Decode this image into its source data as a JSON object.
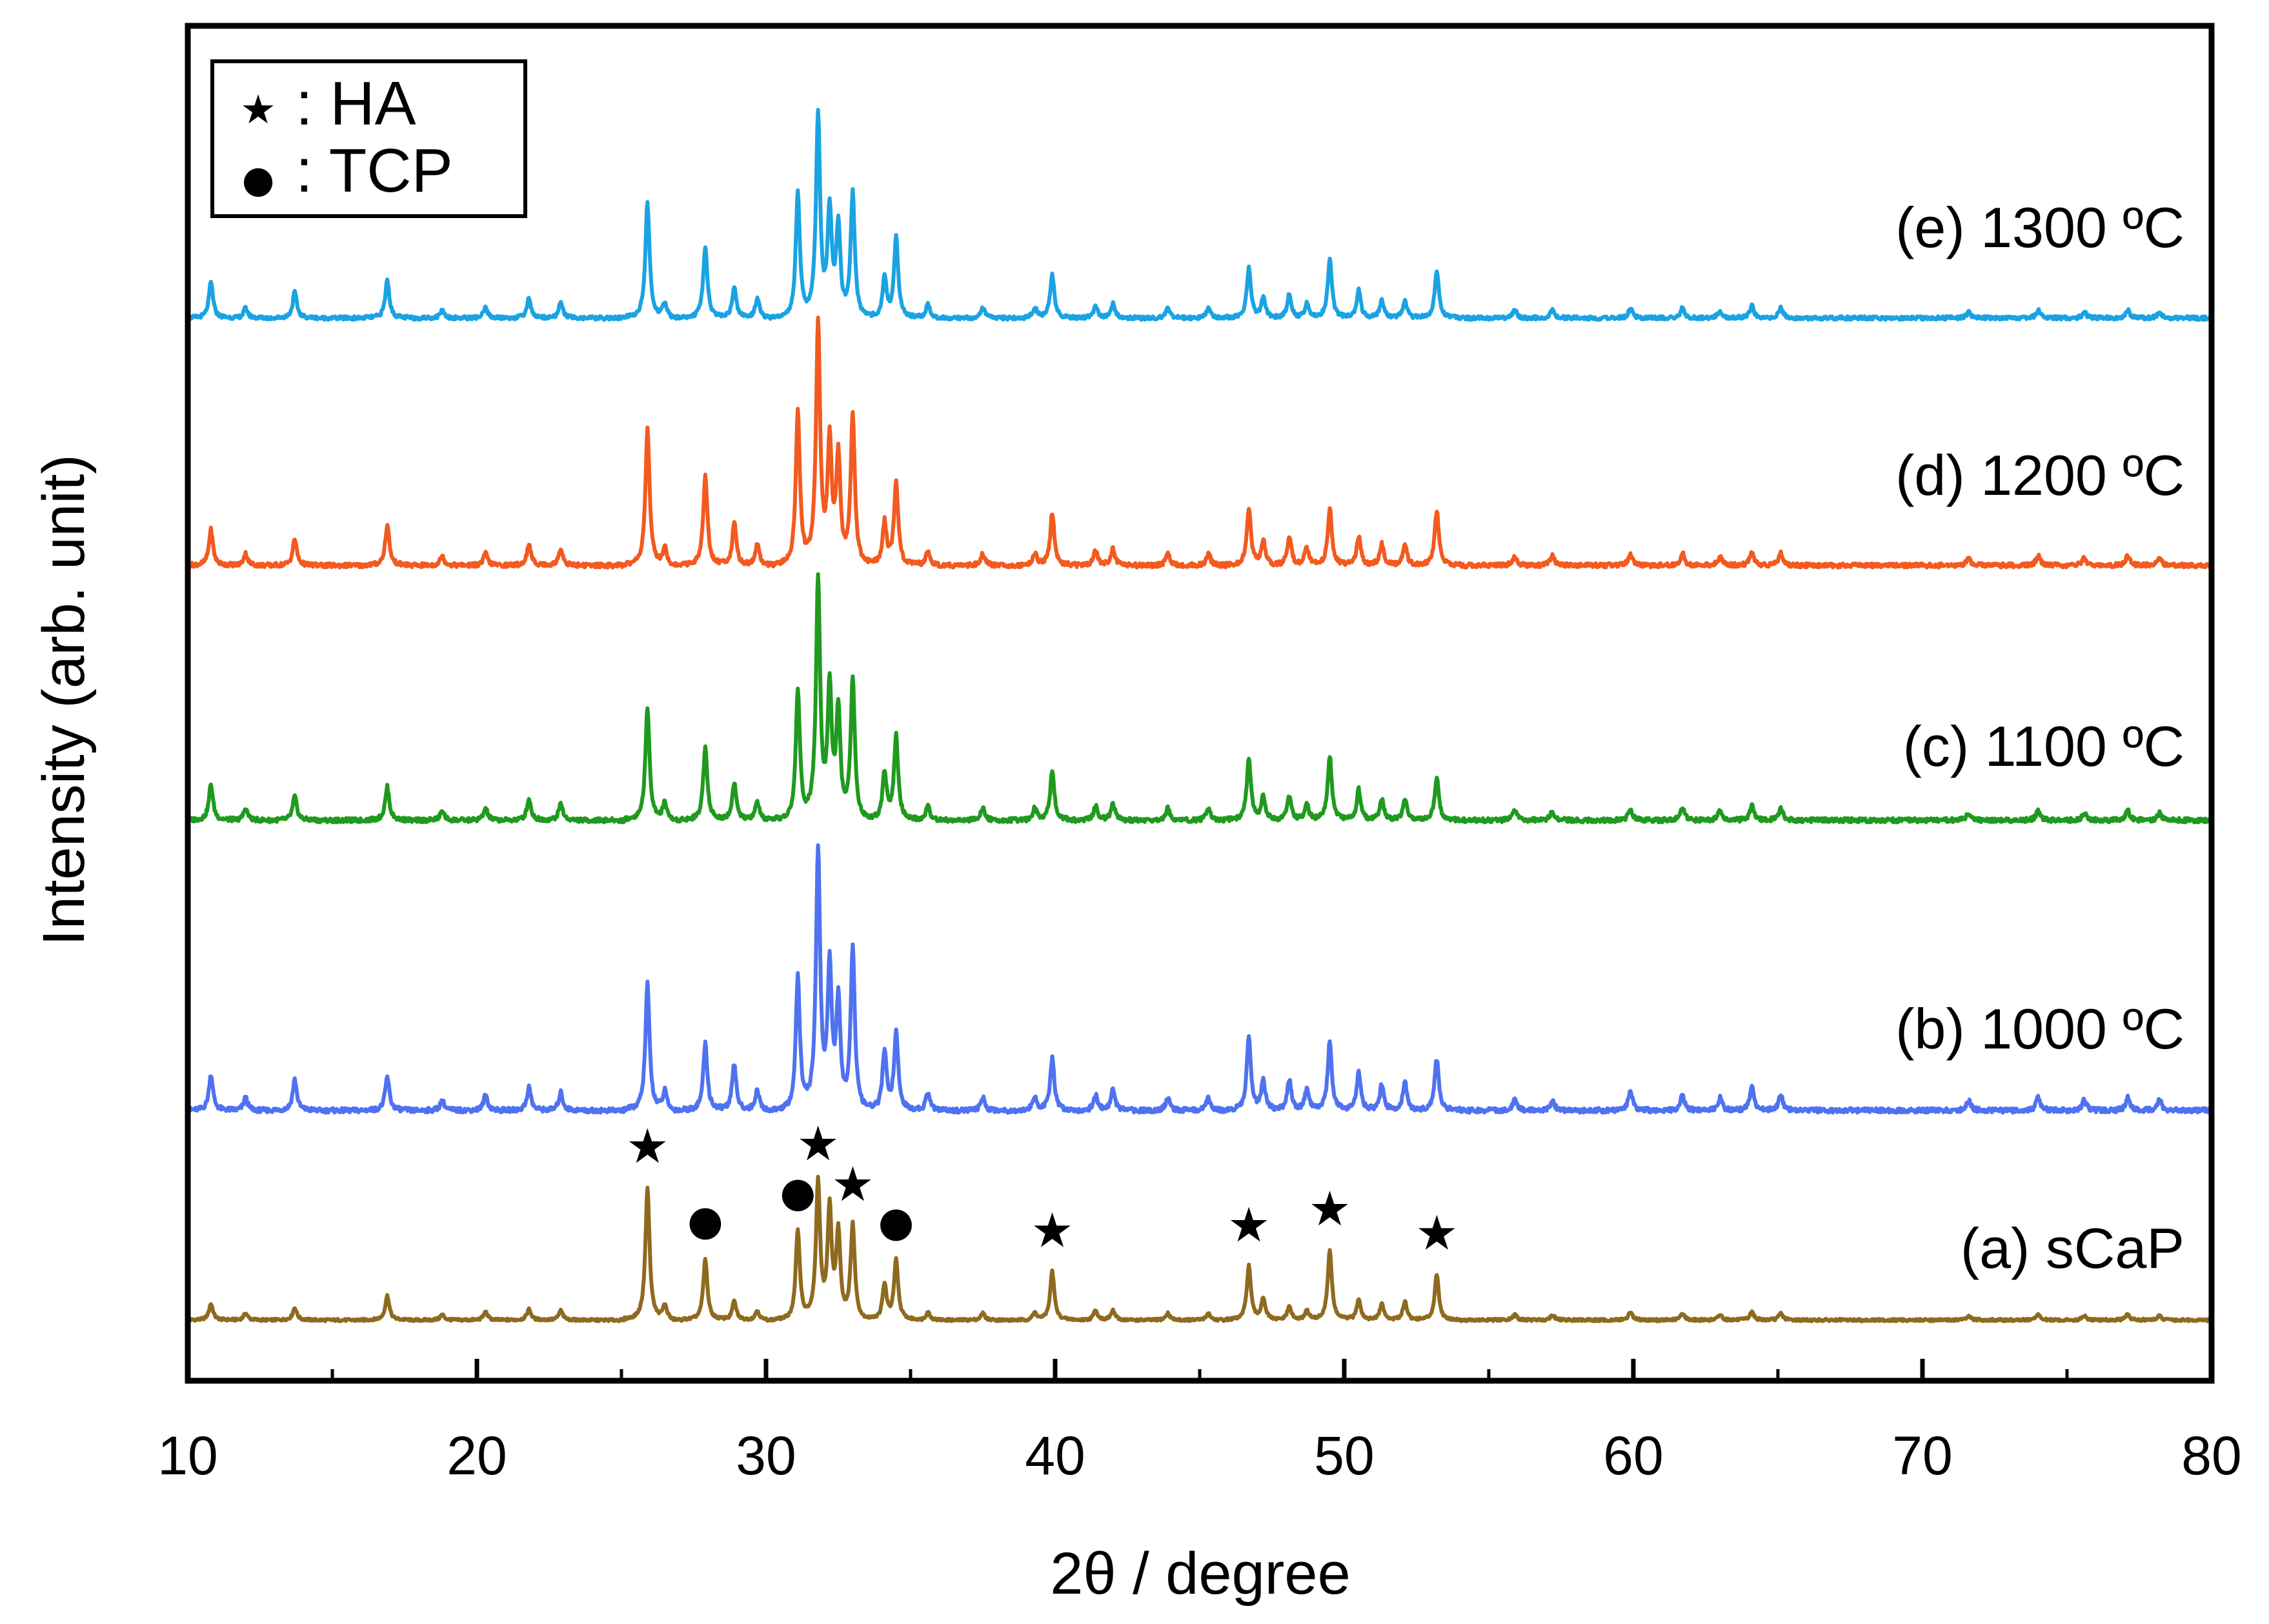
{
  "chart_data": {
    "type": "line",
    "title": "",
    "xlabel": "2θ / degree",
    "ylabel": "Intensity (arb. unit)",
    "xlim": [
      10,
      80
    ],
    "xticks": [
      10,
      20,
      30,
      40,
      50,
      60,
      70,
      80
    ],
    "xtick_labels": [
      "10",
      "20",
      "30",
      "40",
      "50",
      "60",
      "70",
      "80"
    ],
    "y_ticks_shown": false,
    "legend": {
      "position": "top-left",
      "entries": [
        {
          "symbol": "★",
          "label": ": HA"
        },
        {
          "symbol": "●",
          "label": ": TCP"
        }
      ]
    },
    "peaks_2theta": [
      10.8,
      12.0,
      13.7,
      16.9,
      18.8,
      20.3,
      21.8,
      22.9,
      25.9,
      26.5,
      27.9,
      28.9,
      29.7,
      31.1,
      31.8,
      32.2,
      32.5,
      33.0,
      34.1,
      34.5,
      35.6,
      37.5,
      39.3,
      39.9,
      41.4,
      42.0,
      43.9,
      45.3,
      46.7,
      47.2,
      48.1,
      48.7,
      49.5,
      50.5,
      51.3,
      52.1,
      53.2,
      55.9,
      57.2,
      59.9,
      61.7,
      63.0,
      64.1,
      65.1,
      71.6,
      74.0,
      75.6,
      77.1,
      78.2
    ],
    "series": [
      {
        "name": "(a) sCaP",
        "label": "(a) sCaP",
        "color": "#8f6a1e",
        "offset": 0,
        "relative_intensities": [
          0.12,
          0.05,
          0.09,
          0.18,
          0.04,
          0.06,
          0.08,
          0.07,
          0.98,
          0.1,
          0.45,
          0.14,
          0.07,
          0.66,
          1.0,
          0.8,
          0.62,
          0.7,
          0.26,
          0.44,
          0.06,
          0.05,
          0.05,
          0.36,
          0.07,
          0.07,
          0.05,
          0.05,
          0.4,
          0.16,
          0.1,
          0.07,
          0.52,
          0.16,
          0.12,
          0.14,
          0.34,
          0.04,
          0.04,
          0.06,
          0.05,
          0.04,
          0.06,
          0.05,
          0.03,
          0.04,
          0.03,
          0.04,
          0.03
        ]
      },
      {
        "name": "(b) 1000 ºC",
        "label": "(b) 1000 ºC",
        "color": "#4e72f0",
        "offset": 1,
        "relative_intensities": [
          0.14,
          0.05,
          0.12,
          0.13,
          0.04,
          0.06,
          0.09,
          0.07,
          0.49,
          0.07,
          0.26,
          0.18,
          0.08,
          0.51,
          1.0,
          0.54,
          0.4,
          0.63,
          0.23,
          0.3,
          0.07,
          0.05,
          0.05,
          0.2,
          0.06,
          0.08,
          0.05,
          0.05,
          0.29,
          0.11,
          0.12,
          0.08,
          0.27,
          0.15,
          0.1,
          0.11,
          0.2,
          0.04,
          0.04,
          0.08,
          0.06,
          0.05,
          0.09,
          0.06,
          0.04,
          0.05,
          0.04,
          0.05,
          0.04
        ]
      },
      {
        "name": "(c) 1100 ºC",
        "label": "(c) 1100 ºC",
        "color": "#1f9a1f",
        "offset": 2,
        "relative_intensities": [
          0.15,
          0.05,
          0.1,
          0.14,
          0.04,
          0.05,
          0.09,
          0.07,
          0.47,
          0.07,
          0.31,
          0.16,
          0.08,
          0.54,
          1.0,
          0.54,
          0.44,
          0.59,
          0.2,
          0.35,
          0.06,
          0.05,
          0.05,
          0.21,
          0.06,
          0.07,
          0.05,
          0.05,
          0.26,
          0.1,
          0.1,
          0.07,
          0.27,
          0.13,
          0.09,
          0.09,
          0.18,
          0.04,
          0.04,
          0.05,
          0.05,
          0.04,
          0.06,
          0.05,
          0.03,
          0.04,
          0.03,
          0.04,
          0.03
        ]
      },
      {
        "name": "(d) 1200 ºC",
        "label": "(d) 1200 ºC",
        "color": "#f25a1f",
        "offset": 3,
        "relative_intensities": [
          0.15,
          0.05,
          0.11,
          0.17,
          0.04,
          0.05,
          0.09,
          0.07,
          0.57,
          0.07,
          0.38,
          0.18,
          0.09,
          0.64,
          1.0,
          0.5,
          0.44,
          0.63,
          0.18,
          0.35,
          0.06,
          0.05,
          0.05,
          0.22,
          0.06,
          0.07,
          0.05,
          0.05,
          0.24,
          0.1,
          0.12,
          0.07,
          0.24,
          0.12,
          0.09,
          0.09,
          0.23,
          0.04,
          0.04,
          0.05,
          0.05,
          0.04,
          0.06,
          0.05,
          0.03,
          0.04,
          0.03,
          0.04,
          0.03
        ]
      },
      {
        "name": "(e) 1300 ºC",
        "label": "(e) 1300 ºC",
        "color": "#1aa3e3",
        "offset": 4,
        "relative_intensities": [
          0.18,
          0.05,
          0.13,
          0.19,
          0.04,
          0.05,
          0.1,
          0.08,
          0.58,
          0.07,
          0.36,
          0.16,
          0.1,
          0.62,
          1.0,
          0.52,
          0.44,
          0.62,
          0.2,
          0.4,
          0.07,
          0.05,
          0.05,
          0.22,
          0.06,
          0.07,
          0.05,
          0.05,
          0.25,
          0.1,
          0.12,
          0.07,
          0.3,
          0.14,
          0.09,
          0.09,
          0.24,
          0.04,
          0.04,
          0.05,
          0.05,
          0.04,
          0.06,
          0.05,
          0.03,
          0.04,
          0.03,
          0.04,
          0.03
        ]
      }
    ],
    "phase_markers": [
      {
        "phase": "HA",
        "symbol": "★",
        "x": 25.9,
        "series": "(a) sCaP"
      },
      {
        "phase": "TCP",
        "symbol": "●",
        "x": 27.9,
        "series": "(a) sCaP"
      },
      {
        "phase": "TCP",
        "symbol": "●",
        "x": 31.1,
        "series": "(a) sCaP"
      },
      {
        "phase": "HA",
        "symbol": "★",
        "x": 31.8,
        "series": "(a) sCaP"
      },
      {
        "phase": "HA",
        "symbol": "★",
        "x": 33.0,
        "series": "(a) sCaP"
      },
      {
        "phase": "TCP",
        "symbol": "●",
        "x": 34.5,
        "series": "(a) sCaP"
      },
      {
        "phase": "HA",
        "symbol": "★",
        "x": 39.9,
        "series": "(a) sCaP"
      },
      {
        "phase": "HA",
        "symbol": "★",
        "x": 46.7,
        "series": "(a) sCaP"
      },
      {
        "phase": "HA",
        "symbol": "★",
        "x": 49.5,
        "series": "(a) sCaP"
      },
      {
        "phase": "HA",
        "symbol": "★",
        "x": 53.2,
        "series": "(a) sCaP"
      }
    ]
  }
}
